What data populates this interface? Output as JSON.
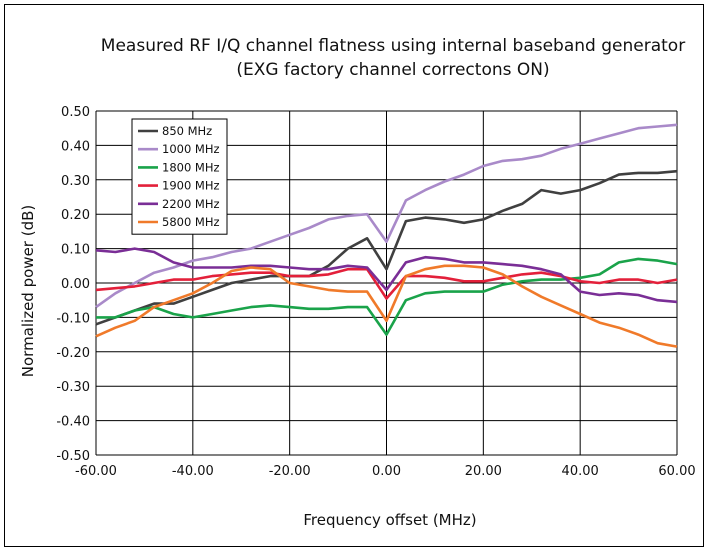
{
  "chart_data": {
    "type": "line",
    "title": "Measured RF I/Q channel flatness using internal baseband generator",
    "subtitle": "(EXG factory  channel  correctons  ON)",
    "xlabel": "Frequency offset (MHz)",
    "ylabel": "Normalized power (dB)",
    "xlim": [
      -60,
      60
    ],
    "ylim": [
      -0.5,
      0.5
    ],
    "x_ticks": [
      -60,
      -40,
      -20,
      0,
      20,
      40,
      60
    ],
    "x_tick_labels": [
      "-60.00",
      "-40.00",
      "-20.00",
      "0.00",
      "20.00",
      "40.00",
      "60.00"
    ],
    "y_ticks": [
      0.5,
      0.4,
      0.3,
      0.2,
      0.1,
      0.0,
      -0.1,
      -0.2,
      -0.3,
      -0.4,
      -0.5
    ],
    "y_tick_labels": [
      "0.50",
      "0.40",
      "0.30",
      "0.20",
      "0.10",
      "0.00",
      "-0.10",
      "-0.20",
      "-0.30",
      "-0.40",
      "-0.50"
    ],
    "grid": true,
    "legend_position": "top-left",
    "series": [
      {
        "name": "850 MHz",
        "color": "#404040",
        "x": [
          -60,
          -56,
          -52,
          -48,
          -44,
          -40,
          -36,
          -32,
          -28,
          -24,
          -20,
          -16,
          -12,
          -8,
          -4,
          0,
          4,
          8,
          12,
          16,
          20,
          24,
          28,
          32,
          36,
          40,
          44,
          48,
          52,
          56,
          60
        ],
        "y": [
          -0.12,
          -0.1,
          -0.08,
          -0.06,
          -0.06,
          -0.04,
          -0.02,
          0.0,
          0.01,
          0.02,
          0.02,
          0.02,
          0.05,
          0.1,
          0.13,
          0.04,
          0.18,
          0.19,
          0.185,
          0.175,
          0.185,
          0.21,
          0.23,
          0.27,
          0.26,
          0.27,
          0.29,
          0.315,
          0.32,
          0.32,
          0.325
        ]
      },
      {
        "name": "1000 MHz",
        "color": "#a98ac9",
        "x": [
          -60,
          -56,
          -52,
          -48,
          -44,
          -40,
          -36,
          -32,
          -28,
          -24,
          -20,
          -16,
          -12,
          -8,
          -4,
          0,
          4,
          8,
          12,
          16,
          20,
          24,
          28,
          32,
          36,
          40,
          44,
          48,
          52,
          56,
          60
        ],
        "y": [
          -0.07,
          -0.03,
          0.0,
          0.03,
          0.045,
          0.065,
          0.075,
          0.09,
          0.1,
          0.12,
          0.14,
          0.16,
          0.185,
          0.195,
          0.2,
          0.12,
          0.24,
          0.27,
          0.295,
          0.315,
          0.34,
          0.355,
          0.36,
          0.37,
          0.39,
          0.405,
          0.42,
          0.435,
          0.45,
          0.455,
          0.46
        ]
      },
      {
        "name": "1800 MHz",
        "color": "#1aa34a",
        "x": [
          -60,
          -56,
          -52,
          -48,
          -44,
          -40,
          -36,
          -32,
          -28,
          -24,
          -20,
          -16,
          -12,
          -8,
          -4,
          0,
          4,
          8,
          12,
          16,
          20,
          24,
          28,
          32,
          36,
          40,
          44,
          48,
          52,
          56,
          60
        ],
        "y": [
          -0.1,
          -0.1,
          -0.08,
          -0.07,
          -0.09,
          -0.1,
          -0.09,
          -0.08,
          -0.07,
          -0.065,
          -0.07,
          -0.075,
          -0.075,
          -0.07,
          -0.07,
          -0.15,
          -0.05,
          -0.03,
          -0.025,
          -0.025,
          -0.025,
          -0.005,
          0.005,
          0.01,
          0.01,
          0.015,
          0.025,
          0.06,
          0.07,
          0.065,
          0.055
        ]
      },
      {
        "name": "1900 MHz",
        "color": "#e3203a",
        "x": [
          -60,
          -56,
          -52,
          -48,
          -44,
          -40,
          -36,
          -32,
          -28,
          -24,
          -20,
          -16,
          -12,
          -8,
          -4,
          0,
          4,
          8,
          12,
          16,
          20,
          24,
          28,
          32,
          36,
          40,
          44,
          48,
          52,
          56,
          60
        ],
        "y": [
          -0.02,
          -0.015,
          -0.01,
          0.0,
          0.01,
          0.01,
          0.02,
          0.025,
          0.03,
          0.03,
          0.02,
          0.02,
          0.025,
          0.04,
          0.04,
          -0.045,
          0.02,
          0.02,
          0.015,
          0.005,
          0.005,
          0.015,
          0.025,
          0.03,
          0.02,
          0.005,
          0.0,
          0.01,
          0.01,
          0.0,
          0.01
        ]
      },
      {
        "name": "2200 MHz",
        "color": "#7a2e96",
        "x": [
          -60,
          -56,
          -52,
          -48,
          -44,
          -40,
          -36,
          -32,
          -28,
          -24,
          -20,
          -16,
          -12,
          -8,
          -4,
          0,
          4,
          8,
          12,
          16,
          20,
          24,
          28,
          32,
          36,
          40,
          44,
          48,
          52,
          56,
          60
        ],
        "y": [
          0.095,
          0.09,
          0.1,
          0.09,
          0.06,
          0.045,
          0.045,
          0.045,
          0.05,
          0.05,
          0.045,
          0.04,
          0.04,
          0.05,
          0.045,
          -0.02,
          0.06,
          0.075,
          0.07,
          0.06,
          0.06,
          0.055,
          0.05,
          0.04,
          0.025,
          -0.025,
          -0.035,
          -0.03,
          -0.035,
          -0.05,
          -0.055
        ]
      },
      {
        "name": "5800 MHz",
        "color": "#f07a2a",
        "x": [
          -60,
          -56,
          -52,
          -48,
          -44,
          -40,
          -36,
          -32,
          -28,
          -24,
          -20,
          -16,
          -12,
          -8,
          -4,
          0,
          4,
          8,
          12,
          16,
          20,
          24,
          28,
          32,
          36,
          40,
          44,
          48,
          52,
          56,
          60
        ],
        "y": [
          -0.155,
          -0.13,
          -0.11,
          -0.07,
          -0.05,
          -0.03,
          0.0,
          0.035,
          0.045,
          0.04,
          0.0,
          -0.01,
          -0.02,
          -0.025,
          -0.025,
          -0.11,
          0.02,
          0.04,
          0.05,
          0.05,
          0.045,
          0.025,
          -0.01,
          -0.04,
          -0.065,
          -0.09,
          -0.115,
          -0.13,
          -0.15,
          -0.175,
          -0.185
        ]
      }
    ]
  }
}
